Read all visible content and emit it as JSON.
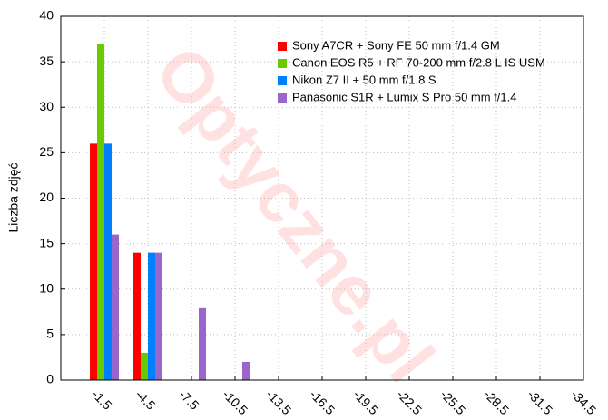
{
  "chart_data": {
    "type": "bar",
    "watermark": "Optyczne.pl",
    "y_label": "Liczba zdjęć",
    "categories": [
      "-1.5",
      "-4.5",
      "-7.5",
      "-10.5",
      "-13.5",
      "-16.5",
      "-19.5",
      "-22.5",
      "-25.5",
      "-28.5",
      "-31.5",
      "-34.5"
    ],
    "series": [
      {
        "name": "Sony A7CR + Sony FE 50 mm f/1.4 GM",
        "color": "#ff0000",
        "values": [
          26,
          14,
          0,
          0,
          0,
          0,
          0,
          0,
          0,
          0,
          0,
          0
        ]
      },
      {
        "name": "Canon EOS R5 + RF 70-200 mm f/2.8 L IS USM",
        "color": "#66cc00",
        "values": [
          37,
          3,
          0,
          0,
          0,
          0,
          0,
          0,
          0,
          0,
          0,
          0
        ]
      },
      {
        "name": "Nikon Z7 II + 50 mm f/1.8 S",
        "color": "#0080ff",
        "values": [
          26,
          14,
          0,
          0,
          0,
          0,
          0,
          0,
          0,
          0,
          0,
          0
        ]
      },
      {
        "name": "Panasonic S1R + Lumix S Pro 50 mm f/1.4",
        "color": "#9966cc",
        "values": [
          16,
          14,
          8,
          2,
          0,
          0,
          0,
          0,
          0,
          0,
          0,
          0
        ]
      }
    ],
    "ylim": [
      0,
      40
    ],
    "yticks": [
      0,
      5,
      10,
      15,
      20,
      25,
      30,
      35,
      40
    ],
    "grid": true
  }
}
